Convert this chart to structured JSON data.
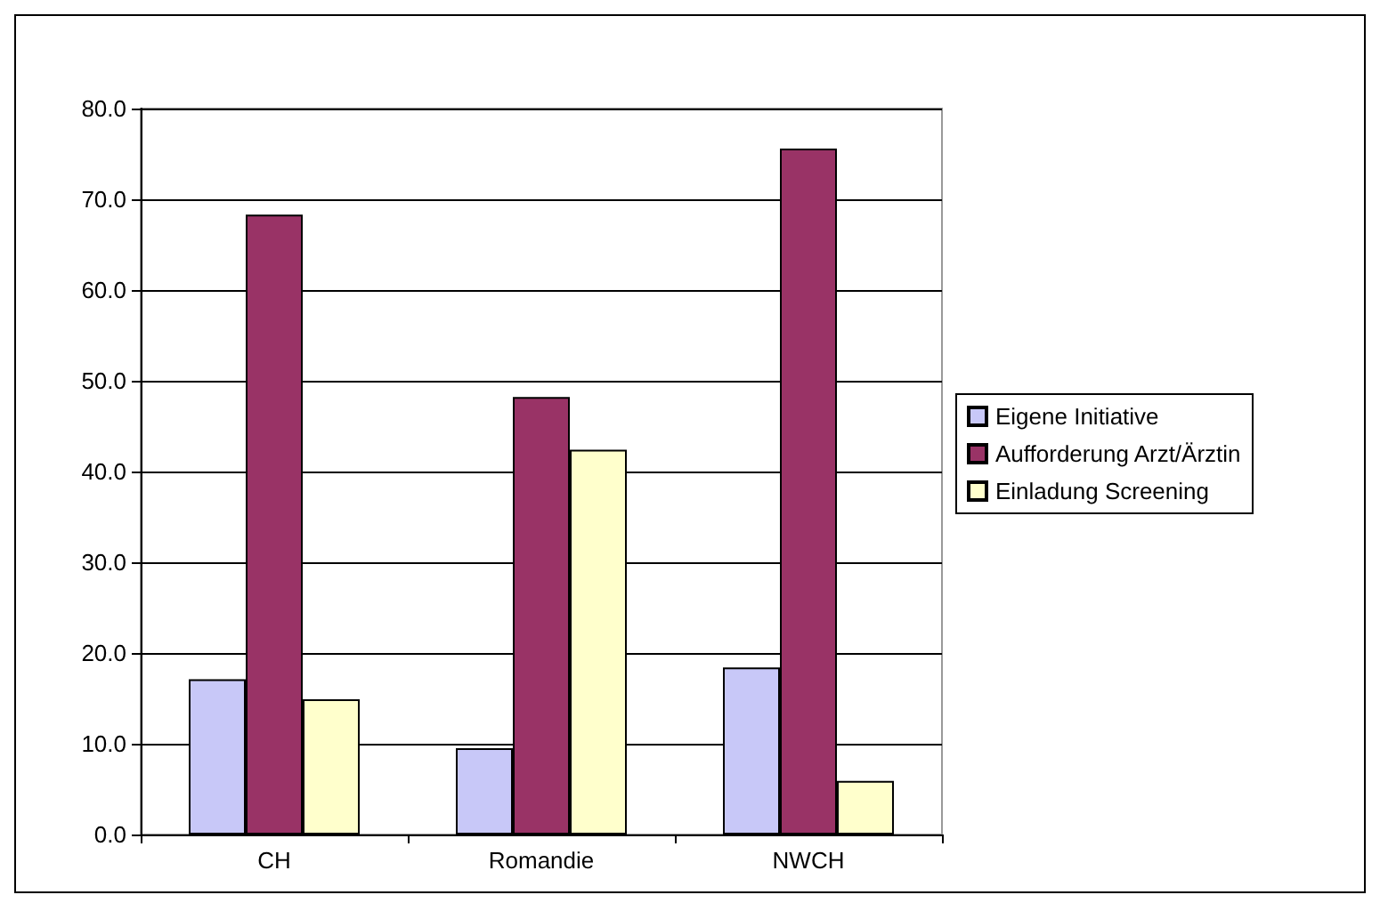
{
  "chart_data": {
    "type": "bar",
    "categories": [
      "CH",
      "Romandie",
      "NWCH"
    ],
    "series": [
      {
        "name": "Eigene Initiative",
        "color": "#c8c8f8",
        "values": [
          17.1,
          9.5,
          18.4
        ]
      },
      {
        "name": "Aufforderung Arzt/Ärztin",
        "color": "#993366",
        "values": [
          68.3,
          48.2,
          75.6
        ]
      },
      {
        "name": "Einladung Screening",
        "color": "#ffffcc",
        "values": [
          14.9,
          42.4,
          5.9
        ]
      }
    ],
    "ylim": [
      0,
      80
    ],
    "yticks": [
      {
        "value": 0,
        "label": "0.0"
      },
      {
        "value": 10,
        "label": "10.0"
      },
      {
        "value": 20,
        "label": "20.0"
      },
      {
        "value": 30,
        "label": "30.0"
      },
      {
        "value": 40,
        "label": "40.0"
      },
      {
        "value": 50,
        "label": "50.0"
      },
      {
        "value": 60,
        "label": "60.0"
      },
      {
        "value": 70,
        "label": "70.0"
      },
      {
        "value": 80,
        "label": "80.0"
      }
    ],
    "grid": "y",
    "legend": "right"
  }
}
